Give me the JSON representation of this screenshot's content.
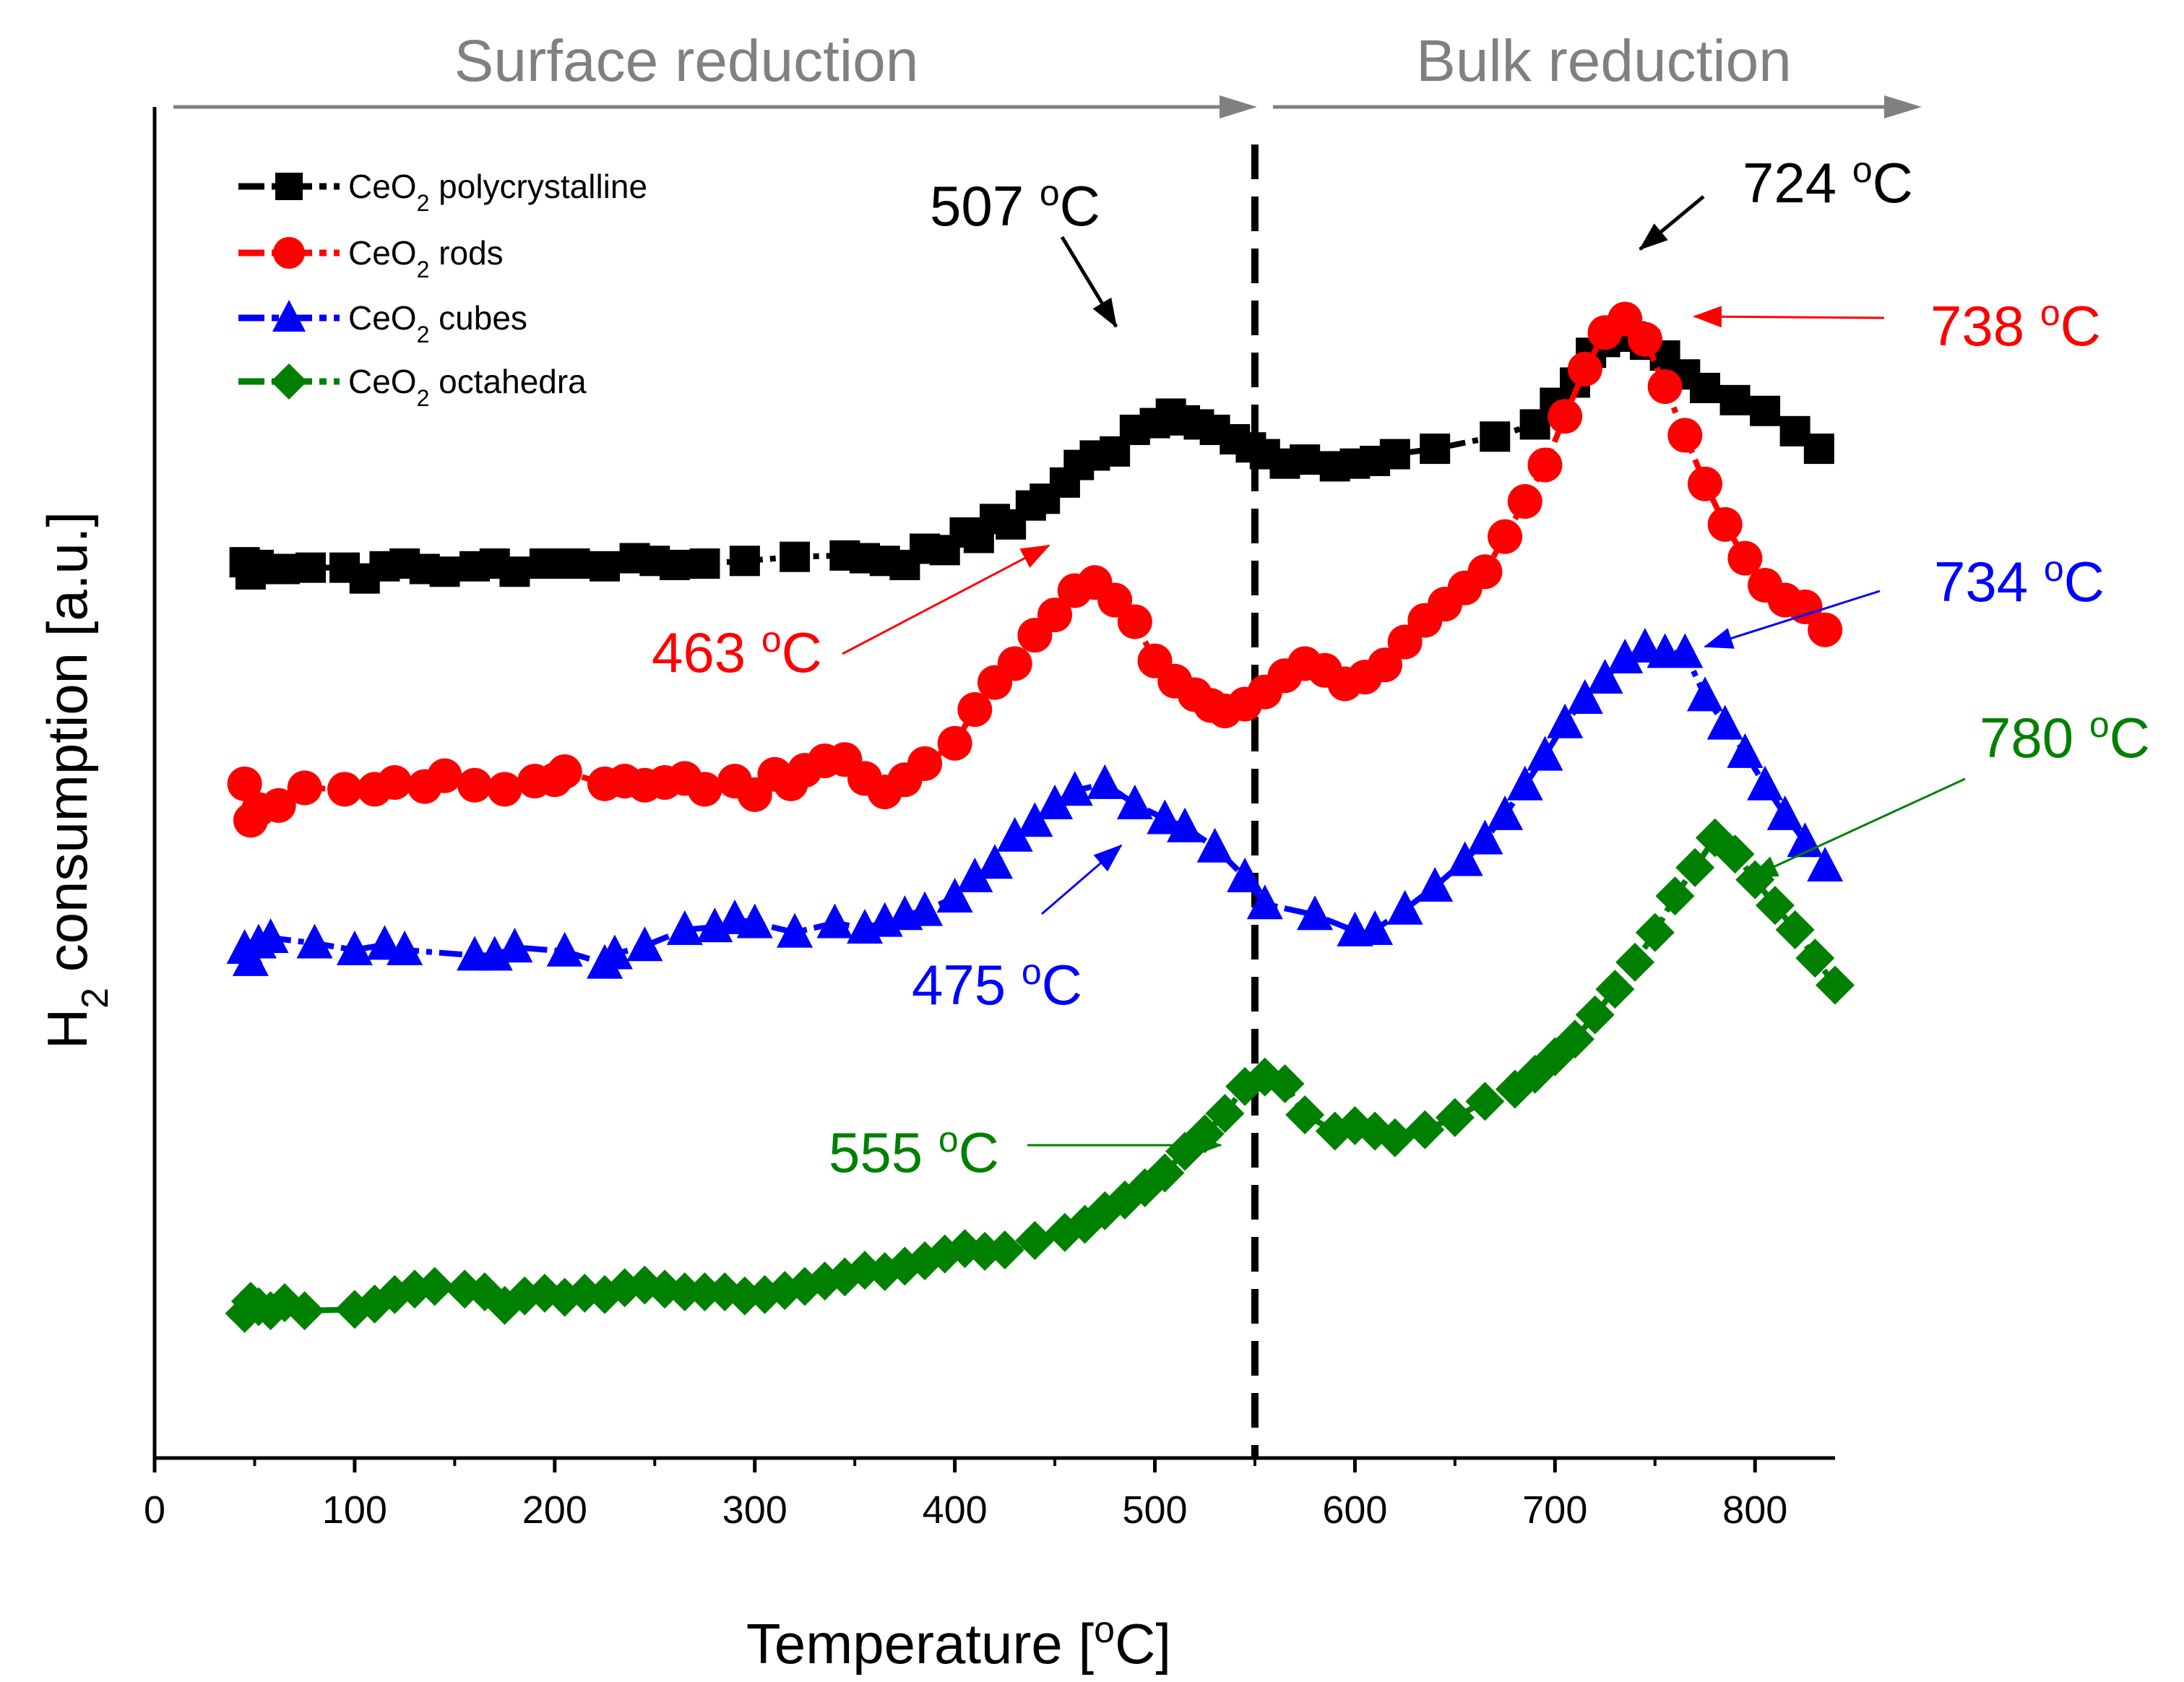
{
  "chart_data": {
    "type": "scatter",
    "xlabel": "Temperature [",
    "xlabel_unit_sup": "o",
    "xlabel_unit": "C]",
    "ylabel": "H",
    "ylabel_sub": "2",
    "ylabel_rest": " consumption [a.u.]",
    "xlim": [
      0,
      840
    ],
    "ylim": [
      0,
      100
    ],
    "xticks": [
      0,
      100,
      200,
      300,
      400,
      500,
      600,
      700,
      800
    ],
    "region_labels": {
      "surface": "Surface reduction",
      "bulk": "Bulk reduction"
    },
    "divider_x": 550,
    "colors": {
      "polycrystalline": "#000000",
      "rods": "#ff0000",
      "cubes": "#0000ff",
      "octahedra": "#008000",
      "region": "#808080"
    },
    "series": [
      {
        "key": "polycrystalline",
        "name_pre": "CeO",
        "name_sub": "2",
        "name_post": " polycrystalline",
        "marker": "square",
        "x": [
          45,
          48,
          52,
          58,
          65,
          78,
          95,
          105,
          115,
          125,
          135,
          145,
          160,
          170,
          180,
          195,
          210,
          225,
          240,
          250,
          260,
          275,
          295,
          320,
          345,
          355,
          365,
          375,
          385,
          395,
          405,
          412,
          420,
          428,
          438,
          445,
          455,
          462,
          470,
          480,
          490,
          500,
          508,
          515,
          522,
          530,
          540,
          548,
          555,
          565,
          575,
          590,
          600,
          610,
          620,
          640,
          670,
          690,
          700,
          710,
          718,
          725,
          730,
          738,
          745,
          755,
          765,
          775,
          790,
          805,
          820,
          832
        ],
        "y": [
          66.3,
          65.4,
          66.1,
          65.8,
          65.8,
          65.9,
          65.9,
          65.1,
          66.0,
          66.2,
          65.8,
          65.6,
          66.0,
          66.2,
          65.6,
          66.2,
          66.2,
          66.0,
          66.6,
          66.4,
          66.1,
          66.2,
          66.4,
          66.7,
          66.8,
          66.6,
          66.4,
          66.1,
          67.3,
          67.2,
          68.5,
          68.1,
          69.5,
          69.1,
          70.5,
          71.0,
          72.2,
          73.5,
          74.2,
          74.5,
          76.1,
          76.6,
          77.3,
          76.8,
          76.5,
          76.1,
          75.4,
          74.8,
          74.3,
          73.6,
          73.9,
          73.4,
          73.6,
          73.8,
          74.3,
          74.7,
          75.6,
          76.5,
          78.1,
          79.6,
          81.8,
          82.6,
          83.0,
          83.0,
          82.4,
          81.6,
          80.2,
          79.2,
          78.3,
          77.5,
          76.0,
          74.7
        ]
      },
      {
        "key": "rods",
        "name_pre": "CeO",
        "name_sub": "2",
        "name_post": " rods",
        "marker": "circle",
        "x": [
          45,
          48,
          52,
          62,
          75,
          95,
          110,
          120,
          135,
          145,
          160,
          175,
          190,
          200,
          205,
          225,
          235,
          245,
          255,
          265,
          275,
          290,
          300,
          310,
          318,
          325,
          335,
          345,
          355,
          365,
          375,
          385,
          400,
          410,
          420,
          430,
          440,
          450,
          460,
          470,
          480,
          490,
          500,
          510,
          520,
          528,
          535,
          545,
          555,
          565,
          575,
          585,
          595,
          605,
          615,
          625,
          635,
          645,
          655,
          665,
          675,
          685,
          695,
          705,
          715,
          725,
          735,
          745,
          755,
          765,
          775,
          785,
          795,
          805,
          815,
          825,
          835
        ],
        "y": [
          49.9,
          47.2,
          48.0,
          48.3,
          49.6,
          49.5,
          49.5,
          50.0,
          49.7,
          50.5,
          49.8,
          49.5,
          50.1,
          50.2,
          50.8,
          49.9,
          50.1,
          49.8,
          50.0,
          50.3,
          49.5,
          50.1,
          49.1,
          50.6,
          49.9,
          50.9,
          51.6,
          51.7,
          50.3,
          49.3,
          50.2,
          51.4,
          52.9,
          55.4,
          57.4,
          58.8,
          60.9,
          62.4,
          64.2,
          64.8,
          63.5,
          61.9,
          59.0,
          57.5,
          56.5,
          55.7,
          55.3,
          55.8,
          56.7,
          57.9,
          58.8,
          58.3,
          57.3,
          57.8,
          58.7,
          60.4,
          62.0,
          63.2,
          64.4,
          65.6,
          68.2,
          70.8,
          73.5,
          77.1,
          80.6,
          83.3,
          84.3,
          82.8,
          79.3,
          75.7,
          72.1,
          69.1,
          66.6,
          64.6,
          63.5,
          63.0,
          61.3
        ]
      },
      {
        "key": "cubes",
        "name_pre": "CeO",
        "name_sub": "2",
        "name_post": " cubes",
        "marker": "triangle",
        "x": [
          45,
          48,
          52,
          58,
          80,
          100,
          115,
          125,
          160,
          170,
          180,
          205,
          225,
          230,
          245,
          265,
          280,
          290,
          300,
          320,
          340,
          355,
          365,
          375,
          385,
          400,
          410,
          420,
          430,
          440,
          450,
          460,
          475,
          490,
          505,
          515,
          530,
          545,
          555,
          580,
          600,
          610,
          625,
          640,
          655,
          665,
          675,
          685,
          695,
          705,
          715,
          725,
          735,
          745,
          755,
          765,
          775,
          785,
          795,
          805,
          815,
          825,
          835
        ],
        "y": [
          37.7,
          36.8,
          38.1,
          38.5,
          38.1,
          37.6,
          38.0,
          37.6,
          37.2,
          37.2,
          37.8,
          37.5,
          36.6,
          37.3,
          37.9,
          39.1,
          39.3,
          39.9,
          39.6,
          38.9,
          39.6,
          39.2,
          39.7,
          40.2,
          40.5,
          41.5,
          43.0,
          44.0,
          46.0,
          47.1,
          48.4,
          49.4,
          49.9,
          48.4,
          47.3,
          46.7,
          45.2,
          43.0,
          41.0,
          40.2,
          39.0,
          39.1,
          40.6,
          42.3,
          44.2,
          45.8,
          47.6,
          49.8,
          52.0,
          54.4,
          56.2,
          57.7,
          59.2,
          60.0,
          59.6,
          59.6,
          56.4,
          54.3,
          52.2,
          49.8,
          47.6,
          45.6,
          43.8
        ]
      },
      {
        "key": "octahedra",
        "name_pre": "CeO",
        "name_sub": "2",
        "name_post": " octahedra",
        "marker": "diamond",
        "x": [
          45,
          48,
          52,
          58,
          65,
          75,
          100,
          110,
          120,
          130,
          140,
          155,
          165,
          175,
          185,
          195,
          205,
          215,
          225,
          235,
          245,
          255,
          265,
          275,
          285,
          295,
          305,
          315,
          325,
          335,
          345,
          355,
          365,
          375,
          385,
          395,
          405,
          415,
          425,
          440,
          455,
          465,
          475,
          485,
          495,
          505,
          515,
          525,
          535,
          545,
          555,
          565,
          575,
          590,
          600,
          610,
          620,
          635,
          650,
          665,
          680,
          690,
          700,
          710,
          720,
          730,
          740,
          750,
          760,
          770,
          780,
          790,
          800,
          810,
          820,
          830,
          840
        ],
        "y": [
          10.7,
          11.6,
          11.2,
          10.9,
          11.5,
          10.9,
          11.0,
          11.4,
          12.1,
          12.5,
          12.7,
          12.5,
          12.3,
          11.3,
          12.0,
          12.2,
          11.9,
          12.2,
          12.1,
          12.6,
          12.8,
          12.5,
          12.3,
          12.3,
          12.3,
          12.0,
          12.1,
          12.4,
          12.7,
          13.1,
          13.4,
          13.9,
          13.8,
          14.2,
          14.6,
          15.1,
          15.5,
          15.3,
          15.4,
          16.1,
          16.7,
          17.3,
          18.3,
          19.1,
          20.0,
          21.1,
          22.7,
          24.0,
          25.5,
          27.5,
          28.2,
          27.7,
          25.4,
          24.2,
          24.6,
          24.2,
          23.7,
          24.3,
          25.2,
          26.4,
          27.3,
          28.4,
          29.7,
          31.0,
          32.8,
          34.7,
          36.7,
          38.9,
          41.6,
          43.7,
          45.9,
          44.7,
          42.8,
          40.9,
          39.1,
          37.0,
          35.0
        ]
      }
    ],
    "annotations": [
      {
        "key": "a507",
        "num": "507 ",
        "sup": "o",
        "unit": "C",
        "series": "polycrystalline",
        "peak_x": 507
      },
      {
        "key": "a724",
        "num": "724 ",
        "sup": "o",
        "unit": "C",
        "series": "polycrystalline",
        "peak_x": 724
      },
      {
        "key": "a738",
        "num": "738 ",
        "sup": "o",
        "unit": "C",
        "series": "rods",
        "peak_x": 738
      },
      {
        "key": "a463",
        "num": "463 ",
        "sup": "o",
        "unit": "C",
        "series": "rods",
        "peak_x": 463
      },
      {
        "key": "a734",
        "num": "734 ",
        "sup": "o",
        "unit": "C",
        "series": "cubes",
        "peak_x": 734
      },
      {
        "key": "a475",
        "num": "475 ",
        "sup": "o",
        "unit": "C",
        "series": "cubes",
        "peak_x": 475
      },
      {
        "key": "a780",
        "num": "780 ",
        "sup": "o",
        "unit": "C",
        "series": "octahedra",
        "peak_x": 780
      },
      {
        "key": "a555",
        "num": "555 ",
        "sup": "o",
        "unit": "C",
        "series": "octahedra",
        "peak_x": 555
      }
    ]
  }
}
